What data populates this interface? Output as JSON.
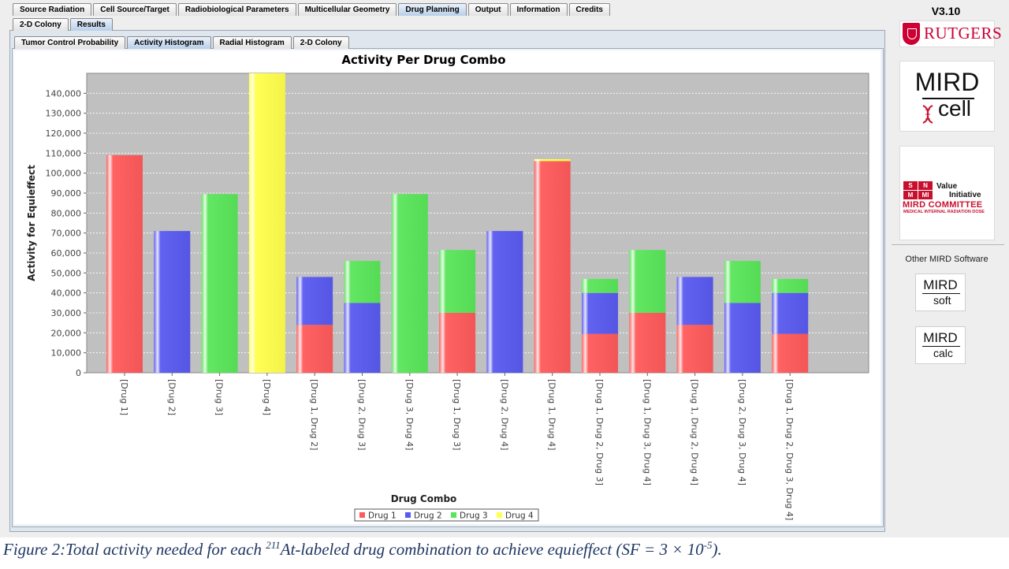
{
  "tabs_main": [
    "Source Radiation",
    "Cell Source/Target",
    "Radiobiological Parameters",
    "Multicellular Geometry",
    "Drug Planning",
    "Output",
    "Information",
    "Credits"
  ],
  "tabs_main_active": 4,
  "tabs_sub": [
    "2-D Colony",
    "Results"
  ],
  "tabs_sub_active": 1,
  "tabs_results": [
    "Tumor Control Probability",
    "Activity Histogram",
    "Radial Histogram",
    "2-D Colony"
  ],
  "tabs_results_active": 1,
  "sidebar": {
    "version": "V3.10",
    "rutgers_text": "RUTGERS",
    "mirdcell_top": "MIRD",
    "mirdcell_bottom": "cell",
    "snmmi_letters": [
      "S",
      "N",
      "M",
      "MI"
    ],
    "value_text": "Value",
    "initiative_text": "Initiative",
    "committee_text": "MIRD COMMITTEE",
    "committee_sub": "MEDICAL INTERNAL RADIATION DOSE",
    "other_label": "Other MIRD Software",
    "mirdsoft_top": "MIRD",
    "mirdsoft_bottom": "soft",
    "mirdcalc_top": "MIRD",
    "mirdcalc_bottom": "calc"
  },
  "caption": {
    "prefix": "Figure 2:Total activity needed for each ",
    "sup1": "211",
    "middle": "At-labeled drug combination to achieve equieffect (SF = 3 × 10",
    "sup2": "-5",
    "suffix": ")."
  },
  "colors": {
    "drug1": "#ff5a5a",
    "drug2": "#5a5af0",
    "drug3": "#5ae65a",
    "drug4": "#ffff4d",
    "plot_bg": "#c0c0c0"
  },
  "chart_data": {
    "type": "bar",
    "stacked": true,
    "title": "Activity Per Drug Combo",
    "xlabel": "Drug Combo",
    "ylabel": "Activity for Equieffect",
    "ylim": [
      0,
      150000
    ],
    "y_ticks": [
      "0",
      "10,000",
      "20,000",
      "30,000",
      "40,000",
      "50,000",
      "60,000",
      "70,000",
      "80,000",
      "90,000",
      "100,000",
      "110,000",
      "120,000",
      "130,000",
      "140,000"
    ],
    "grid": true,
    "legend_position": "bottom",
    "categories": [
      "[Drug 1]",
      "[Drug 2]",
      "[Drug 3]",
      "[Drug 4]",
      "[Drug 1, Drug 2]",
      "[Drug 2, Drug 3]",
      "[Drug 3, Drug 4]",
      "[Drug 1, Drug 3]",
      "[Drug 2, Drug 4]",
      "[Drug 1, Drug 4]",
      "[Drug 1, Drug 2, Drug 3]",
      "[Drug 1, Drug 3, Drug 4]",
      "[Drug 1, Drug 2, Drug 4]",
      "[Drug 2, Drug 3, Drug 4]",
      "[Drug 1, Drug 2, Drug 3, Drug 4]"
    ],
    "series": [
      {
        "name": "Drug 1",
        "values": [
          109000,
          0,
          0,
          0,
          24000,
          0,
          0,
          30000,
          0,
          106000,
          19500,
          30000,
          24000,
          0,
          19500
        ]
      },
      {
        "name": "Drug 2",
        "values": [
          0,
          71000,
          0,
          0,
          24000,
          35000,
          0,
          0,
          71000,
          0,
          20500,
          0,
          24000,
          35000,
          20500
        ]
      },
      {
        "name": "Drug 3",
        "values": [
          0,
          0,
          89500,
          0,
          0,
          21000,
          89500,
          31500,
          0,
          0,
          7000,
          31500,
          0,
          21000,
          7000
        ]
      },
      {
        "name": "Drug 4",
        "values": [
          0,
          0,
          0,
          150000,
          0,
          0,
          0,
          0,
          0,
          1000,
          0,
          0,
          0,
          0,
          0
        ]
      }
    ]
  }
}
